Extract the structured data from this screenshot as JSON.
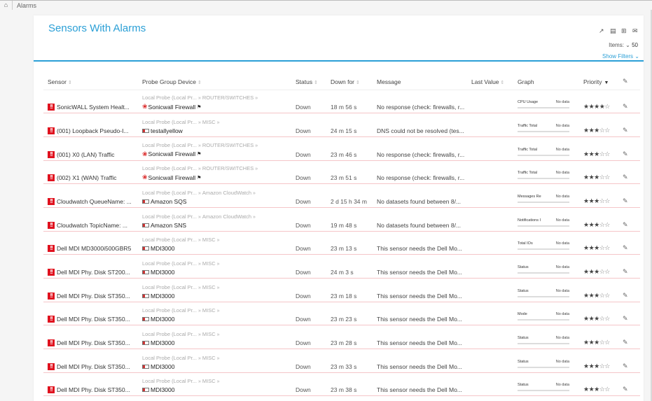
{
  "breadcrumb": {
    "home_icon": "home-icon",
    "current": "Alarms"
  },
  "page": {
    "title": "Sensors With Alarms",
    "toolbar_icons": [
      "external-link-icon",
      "pdf-export-icon",
      "add-document-icon",
      "email-icon"
    ],
    "items_label": "Items:",
    "items_value": "50",
    "show_filters": "Show Filters"
  },
  "table": {
    "columns": {
      "sensor": "Sensor",
      "probe_group_device": "Probe Group Device",
      "status": "Status",
      "down_for": "Down for",
      "message": "Message",
      "last_value": "Last Value",
      "graph": "Graph",
      "priority": "Priority"
    },
    "rows": [
      {
        "sensor": "SonicWALL System Healt...",
        "probe": "Local Probe (Local Pr...",
        "group": "ROUTER/SWITCHES",
        "device": "Sonicwall Firewall",
        "device_icon": "huawei",
        "flag": true,
        "status": "Down",
        "down_for": "18 m 56 s",
        "message": "No response (check: firewalls, r...",
        "last_value": "",
        "graph_label": "CPU Usage",
        "graph_value": "No data",
        "priority": 4
      },
      {
        "sensor": "(001) Loopback Pseudo-I...",
        "probe": "Local Probe (Local Pr...",
        "group": "MISC",
        "device": "testallyellow",
        "device_icon": "generic",
        "flag": false,
        "status": "Down",
        "down_for": "24 m 15 s",
        "message": "DNS could not be resolved (tes...",
        "last_value": "",
        "graph_label": "Traffic Total",
        "graph_value": "No data",
        "priority": 3
      },
      {
        "sensor": "(001) X0 (LAN) Traffic",
        "probe": "Local Probe (Local Pr...",
        "group": "ROUTER/SWITCHES",
        "device": "Sonicwall Firewall",
        "device_icon": "huawei",
        "flag": true,
        "status": "Down",
        "down_for": "23 m 46 s",
        "message": "No response (check: firewalls, r...",
        "last_value": "",
        "graph_label": "Traffic Total",
        "graph_value": "No data",
        "priority": 3
      },
      {
        "sensor": "(002) X1 (WAN) Traffic",
        "probe": "Local Probe (Local Pr...",
        "group": "ROUTER/SWITCHES",
        "device": "Sonicwall Firewall",
        "device_icon": "huawei",
        "flag": true,
        "status": "Down",
        "down_for": "23 m 51 s",
        "message": "No response (check: firewalls, r...",
        "last_value": "",
        "graph_label": "Traffic Total",
        "graph_value": "No data",
        "priority": 3
      },
      {
        "sensor": "Cloudwatch QueueName: ...",
        "probe": "Local Probe (Local Pr...",
        "group": "Amazon CloudWatch",
        "device": "Amazon SQS",
        "device_icon": "generic",
        "flag": false,
        "status": "Down",
        "down_for": "2 d 15 h 34 m",
        "message": "No datasets found between 8/...",
        "last_value": "",
        "graph_label": "Messages Re",
        "graph_value": "No data",
        "priority": 3
      },
      {
        "sensor": "Cloudwatch TopicName: ...",
        "probe": "Local Probe (Local Pr...",
        "group": "Amazon CloudWatch",
        "device": "Amazon SNS",
        "device_icon": "generic",
        "flag": false,
        "status": "Down",
        "down_for": "19 m 48 s",
        "message": "No datasets found between 8/...",
        "last_value": "",
        "graph_label": "Notifications I",
        "graph_value": "No data",
        "priority": 3
      },
      {
        "sensor": "Dell MDI MD3000i500GBR5",
        "probe": "Local Probe (Local Pr...",
        "group": "MISC",
        "device": "MDI3000",
        "device_icon": "generic",
        "flag": false,
        "status": "Down",
        "down_for": "23 m 13 s",
        "message": "This sensor needs the Dell Mo...",
        "last_value": "",
        "graph_label": "Total IOs",
        "graph_value": "No data",
        "priority": 3
      },
      {
        "sensor": "Dell MDI Phy. Disk ST200...",
        "probe": "Local Probe (Local Pr...",
        "group": "MISC",
        "device": "MDI3000",
        "device_icon": "generic",
        "flag": false,
        "status": "Down",
        "down_for": "24 m 3 s",
        "message": "This sensor needs the Dell Mo...",
        "last_value": "",
        "graph_label": "Status",
        "graph_value": "No data",
        "priority": 3
      },
      {
        "sensor": "Dell MDI Phy. Disk ST350...",
        "probe": "Local Probe (Local Pr...",
        "group": "MISC",
        "device": "MDI3000",
        "device_icon": "generic",
        "flag": false,
        "status": "Down",
        "down_for": "23 m 18 s",
        "message": "This sensor needs the Dell Mo...",
        "last_value": "",
        "graph_label": "Status",
        "graph_value": "No data",
        "priority": 3
      },
      {
        "sensor": "Dell MDI Phy. Disk ST350...",
        "probe": "Local Probe (Local Pr...",
        "group": "MISC",
        "device": "MDI3000",
        "device_icon": "generic",
        "flag": false,
        "status": "Down",
        "down_for": "23 m 23 s",
        "message": "This sensor needs the Dell Mo...",
        "last_value": "",
        "graph_label": "Mode",
        "graph_value": "No data",
        "priority": 3
      },
      {
        "sensor": "Dell MDI Phy. Disk ST350...",
        "probe": "Local Probe (Local Pr...",
        "group": "MISC",
        "device": "MDI3000",
        "device_icon": "generic",
        "flag": false,
        "status": "Down",
        "down_for": "23 m 28 s",
        "message": "This sensor needs the Dell Mo...",
        "last_value": "",
        "graph_label": "Status",
        "graph_value": "No data",
        "priority": 3
      },
      {
        "sensor": "Dell MDI Phy. Disk ST350...",
        "probe": "Local Probe (Local Pr...",
        "group": "MISC",
        "device": "MDI3000",
        "device_icon": "generic",
        "flag": false,
        "status": "Down",
        "down_for": "23 m 33 s",
        "message": "This sensor needs the Dell Mo...",
        "last_value": "",
        "graph_label": "Status",
        "graph_value": "No data",
        "priority": 3
      },
      {
        "sensor": "Dell MDI Phy. Disk ST350...",
        "probe": "Local Probe (Local Pr...",
        "group": "MISC",
        "device": "MDI3000",
        "device_icon": "generic",
        "flag": false,
        "status": "Down",
        "down_for": "23 m 38 s",
        "message": "This sensor needs the Dell Mo...",
        "last_value": "",
        "graph_label": "Status",
        "graph_value": "No data",
        "priority": 3
      }
    ]
  },
  "colors": {
    "accent": "#2a9fd6",
    "alarm": "#e0121f",
    "row_border": "#f5c5c8"
  }
}
